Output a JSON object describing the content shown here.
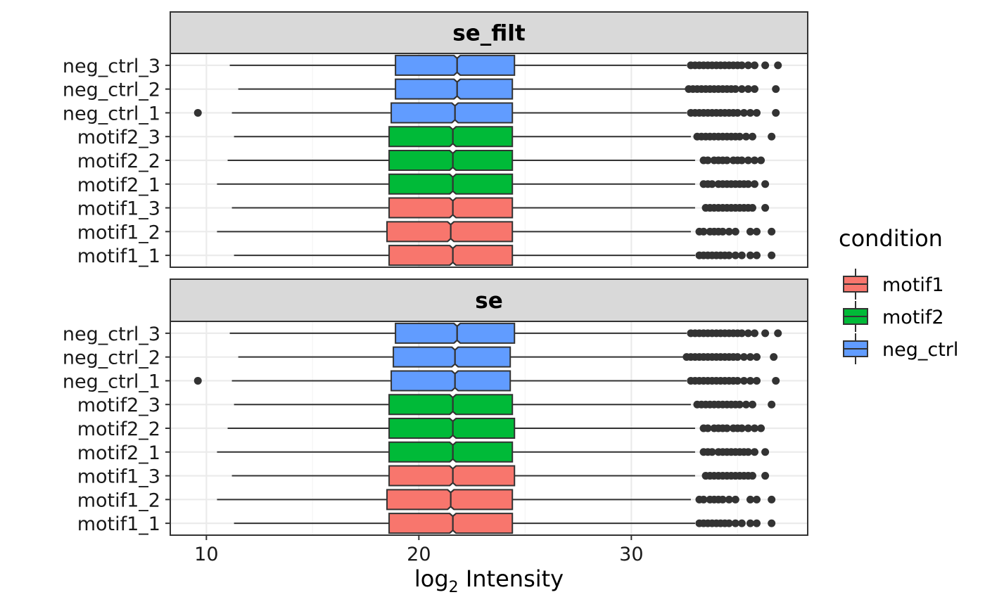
{
  "colors": {
    "motif1": "#F8766D",
    "motif2": "#00BA38",
    "neg_ctrl": "#619CFF",
    "strip_bg": "#D9D9D9",
    "grid_major": "#EBEBEB",
    "grid_minor": "#F5F5F5",
    "outline": "#333333"
  },
  "chart_data": {
    "type": "boxplot",
    "orientation": "horizontal",
    "notched": true,
    "xlabel": "log",
    "xlabel_sub": "2",
    "xlabel_rest": " Intensity",
    "xlim": [
      8.3,
      38.3
    ],
    "xticks": [
      10,
      20,
      30
    ],
    "xtick_labels": [
      "10",
      "20",
      "30"
    ],
    "grid": true,
    "legend": {
      "title": "condition",
      "placement": "right",
      "entries": [
        "motif1",
        "motif2",
        "neg_ctrl"
      ]
    },
    "categories": [
      "motif1_1",
      "motif1_2",
      "motif1_3",
      "motif2_1",
      "motif2_2",
      "motif2_3",
      "neg_ctrl_1",
      "neg_ctrl_2",
      "neg_ctrl_3"
    ],
    "facets": [
      {
        "label": "se_filt",
        "samples": [
          {
            "name": "motif1_1",
            "condition": "motif1",
            "whisker_low": 11.3,
            "q1": 18.6,
            "median": 21.6,
            "q3": 24.4,
            "whisker_high": 33.0,
            "notch": [
              21.45,
              21.75
            ],
            "outliers": [
              33.2,
              33.4,
              33.6,
              33.8,
              34.0,
              34.2,
              34.4,
              34.6,
              34.9,
              35.2,
              35.6,
              35.9,
              36.6
            ]
          },
          {
            "name": "motif1_2",
            "condition": "motif1",
            "whisker_low": 10.5,
            "q1": 18.5,
            "median": 21.5,
            "q3": 24.4,
            "whisker_high": 32.8,
            "notch": [
              21.35,
              21.65
            ],
            "outliers": [
              33.2,
              33.4,
              33.7,
              33.9,
              34.1,
              34.3,
              34.6,
              34.9,
              35.6,
              35.9,
              36.6
            ]
          },
          {
            "name": "motif1_3",
            "condition": "motif1",
            "whisker_low": 11.2,
            "q1": 18.6,
            "median": 21.6,
            "q3": 24.4,
            "whisker_high": 33.0,
            "notch": [
              21.45,
              21.75
            ],
            "outliers": [
              33.5,
              33.7,
              33.9,
              34.1,
              34.3,
              34.5,
              34.7,
              34.9,
              35.1,
              35.3,
              35.5,
              35.7,
              36.3
            ]
          },
          {
            "name": "motif2_1",
            "condition": "motif2",
            "whisker_low": 10.5,
            "q1": 18.6,
            "median": 21.6,
            "q3": 24.4,
            "whisker_high": 33.0,
            "notch": [
              21.45,
              21.75
            ],
            "outliers": [
              33.4,
              33.6,
              33.8,
              34.1,
              34.3,
              34.5,
              34.7,
              34.9,
              35.1,
              35.3,
              35.5,
              35.8,
              36.3
            ]
          },
          {
            "name": "motif2_2",
            "condition": "motif2",
            "whisker_low": 11.0,
            "q1": 18.6,
            "median": 21.6,
            "q3": 24.4,
            "whisker_high": 33.0,
            "notch": [
              21.45,
              21.75
            ],
            "outliers": [
              33.4,
              33.6,
              33.9,
              34.1,
              34.3,
              34.5,
              34.8,
              35.0,
              35.2,
              35.5,
              35.8,
              36.1
            ]
          },
          {
            "name": "motif2_3",
            "condition": "motif2",
            "whisker_low": 11.3,
            "q1": 18.6,
            "median": 21.6,
            "q3": 24.4,
            "whisker_high": 32.8,
            "notch": [
              21.45,
              21.75
            ],
            "outliers": [
              33.1,
              33.3,
              33.5,
              33.7,
              33.9,
              34.1,
              34.3,
              34.5,
              34.7,
              34.9,
              35.1,
              35.4,
              35.7,
              36.6
            ]
          },
          {
            "name": "neg_ctrl_1",
            "condition": "neg_ctrl",
            "whisker_low": 11.2,
            "q1": 18.7,
            "median": 21.7,
            "q3": 24.4,
            "whisker_high": 32.6,
            "notch": [
              21.55,
              21.85
            ],
            "outliers": [
              9.6,
              32.8,
              33.0,
              33.2,
              33.4,
              33.6,
              33.8,
              34.0,
              34.2,
              34.4,
              34.6,
              34.8,
              35.0,
              35.3,
              35.6,
              35.9,
              36.8
            ]
          },
          {
            "name": "neg_ctrl_2",
            "condition": "neg_ctrl",
            "whisker_low": 11.5,
            "q1": 18.9,
            "median": 21.8,
            "q3": 24.4,
            "whisker_high": 32.6,
            "notch": [
              21.65,
              21.95
            ],
            "outliers": [
              32.7,
              32.9,
              33.1,
              33.3,
              33.5,
              33.7,
              33.9,
              34.1,
              34.3,
              34.5,
              34.7,
              34.9,
              35.2,
              35.5,
              35.8,
              36.8
            ]
          },
          {
            "name": "neg_ctrl_3",
            "condition": "neg_ctrl",
            "whisker_low": 11.1,
            "q1": 18.9,
            "median": 21.8,
            "q3": 24.5,
            "whisker_high": 32.6,
            "notch": [
              21.65,
              21.95
            ],
            "outliers": [
              32.8,
              33.0,
              33.2,
              33.4,
              33.6,
              33.8,
              34.0,
              34.2,
              34.4,
              34.6,
              34.8,
              35.0,
              35.2,
              35.5,
              35.8,
              36.3,
              36.9
            ]
          }
        ]
      },
      {
        "label": "se",
        "samples": [
          {
            "name": "motif1_1",
            "condition": "motif1",
            "whisker_low": 11.3,
            "q1": 18.6,
            "median": 21.6,
            "q3": 24.4,
            "whisker_high": 33.0,
            "notch": [
              21.45,
              21.75
            ],
            "outliers": [
              33.2,
              33.4,
              33.6,
              33.8,
              34.0,
              34.2,
              34.4,
              34.6,
              34.9,
              35.2,
              35.6,
              35.9,
              36.6
            ]
          },
          {
            "name": "motif1_2",
            "condition": "motif1",
            "whisker_low": 10.5,
            "q1": 18.5,
            "median": 21.5,
            "q3": 24.4,
            "whisker_high": 32.8,
            "notch": [
              21.35,
              21.65
            ],
            "outliers": [
              33.2,
              33.4,
              33.7,
              33.9,
              34.1,
              34.3,
              34.6,
              34.9,
              35.6,
              35.9,
              36.6
            ]
          },
          {
            "name": "motif1_3",
            "condition": "motif1",
            "whisker_low": 11.2,
            "q1": 18.6,
            "median": 21.6,
            "q3": 24.5,
            "whisker_high": 33.0,
            "notch": [
              21.45,
              21.75
            ],
            "outliers": [
              33.5,
              33.7,
              33.9,
              34.1,
              34.3,
              34.5,
              34.7,
              34.9,
              35.1,
              35.3,
              35.5,
              35.7,
              36.3
            ]
          },
          {
            "name": "motif2_1",
            "condition": "motif2",
            "whisker_low": 10.5,
            "q1": 18.6,
            "median": 21.6,
            "q3": 24.4,
            "whisker_high": 33.0,
            "notch": [
              21.45,
              21.75
            ],
            "outliers": [
              33.4,
              33.6,
              33.8,
              34.1,
              34.3,
              34.5,
              34.7,
              34.9,
              35.1,
              35.3,
              35.5,
              35.8,
              36.3
            ]
          },
          {
            "name": "motif2_2",
            "condition": "motif2",
            "whisker_low": 11.0,
            "q1": 18.6,
            "median": 21.6,
            "q3": 24.5,
            "whisker_high": 33.0,
            "notch": [
              21.45,
              21.75
            ],
            "outliers": [
              33.4,
              33.6,
              33.9,
              34.1,
              34.3,
              34.5,
              34.8,
              35.0,
              35.2,
              35.5,
              35.8,
              36.1
            ]
          },
          {
            "name": "motif2_3",
            "condition": "motif2",
            "whisker_low": 11.3,
            "q1": 18.6,
            "median": 21.6,
            "q3": 24.4,
            "whisker_high": 32.8,
            "notch": [
              21.45,
              21.75
            ],
            "outliers": [
              33.1,
              33.3,
              33.5,
              33.7,
              33.9,
              34.1,
              34.3,
              34.5,
              34.7,
              34.9,
              35.1,
              35.4,
              35.7,
              36.6
            ]
          },
          {
            "name": "neg_ctrl_1",
            "condition": "neg_ctrl",
            "whisker_low": 11.2,
            "q1": 18.7,
            "median": 21.7,
            "q3": 24.3,
            "whisker_high": 32.6,
            "notch": [
              21.55,
              21.85
            ],
            "outliers": [
              9.6,
              32.8,
              33.0,
              33.2,
              33.4,
              33.6,
              33.8,
              34.0,
              34.2,
              34.4,
              34.6,
              34.8,
              35.0,
              35.3,
              35.6,
              35.9,
              36.8
            ]
          },
          {
            "name": "neg_ctrl_2",
            "condition": "neg_ctrl",
            "whisker_low": 11.5,
            "q1": 18.8,
            "median": 21.7,
            "q3": 24.3,
            "whisker_high": 32.5,
            "notch": [
              21.55,
              21.85
            ],
            "outliers": [
              32.6,
              32.8,
              33.0,
              33.2,
              33.4,
              33.6,
              33.8,
              34.0,
              34.2,
              34.4,
              34.6,
              34.8,
              35.0,
              35.3,
              35.6,
              35.9,
              36.7
            ]
          },
          {
            "name": "neg_ctrl_3",
            "condition": "neg_ctrl",
            "whisker_low": 11.1,
            "q1": 18.9,
            "median": 21.8,
            "q3": 24.5,
            "whisker_high": 32.6,
            "notch": [
              21.65,
              21.95
            ],
            "outliers": [
              32.8,
              33.0,
              33.2,
              33.4,
              33.6,
              33.8,
              34.0,
              34.2,
              34.4,
              34.6,
              34.8,
              35.0,
              35.2,
              35.5,
              35.8,
              36.3,
              36.9
            ]
          }
        ]
      }
    ]
  }
}
